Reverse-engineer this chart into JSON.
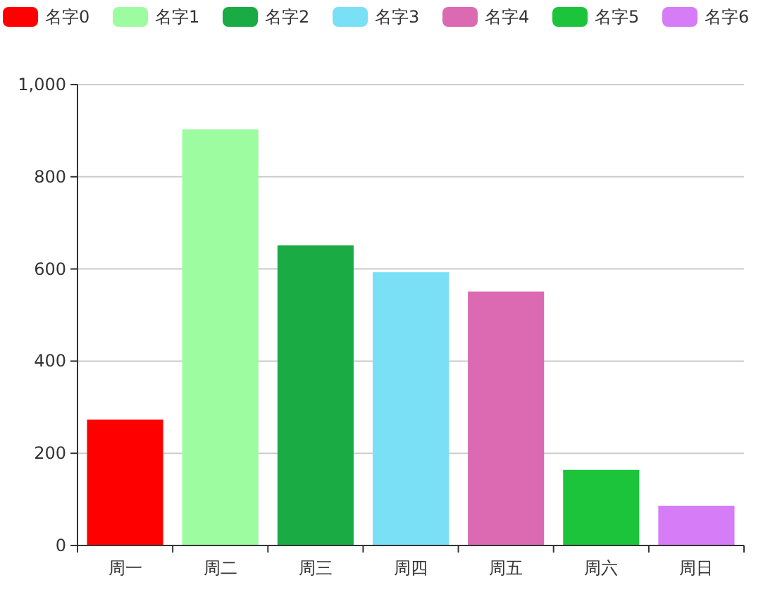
{
  "chart_data": {
    "type": "bar",
    "stacked": true,
    "categories": [
      "周一",
      "周二",
      "周三",
      "周四",
      "周五",
      "周六",
      "周日"
    ],
    "series": [
      {
        "name": "名字0",
        "color": "#ff0000",
        "values": [
          273,
          null,
          null,
          null,
          null,
          null,
          null
        ]
      },
      {
        "name": "名字1",
        "color": "#9efca0",
        "values": [
          null,
          903,
          null,
          null,
          null,
          null,
          null
        ]
      },
      {
        "name": "名字2",
        "color": "#1aab45",
        "values": [
          null,
          null,
          651,
          null,
          null,
          null,
          null
        ]
      },
      {
        "name": "名字3",
        "color": "#7ae0f5",
        "values": [
          null,
          null,
          null,
          593,
          null,
          null,
          null
        ]
      },
      {
        "name": "名字4",
        "color": "#db6ab3",
        "values": [
          null,
          null,
          null,
          null,
          551,
          null,
          null
        ]
      },
      {
        "name": "名字5",
        "color": "#1bc43a",
        "values": [
          null,
          null,
          null,
          null,
          null,
          164,
          null
        ]
      },
      {
        "name": "名字6",
        "color": "#d67cf7",
        "values": [
          null,
          null,
          null,
          null,
          null,
          null,
          86
        ]
      }
    ],
    "ylim": [
      0,
      1000
    ],
    "yticks": [
      0,
      200,
      400,
      600,
      800,
      {
        "value": 1000,
        "label": "1,000"
      }
    ],
    "grid": "y",
    "legend": "top"
  }
}
